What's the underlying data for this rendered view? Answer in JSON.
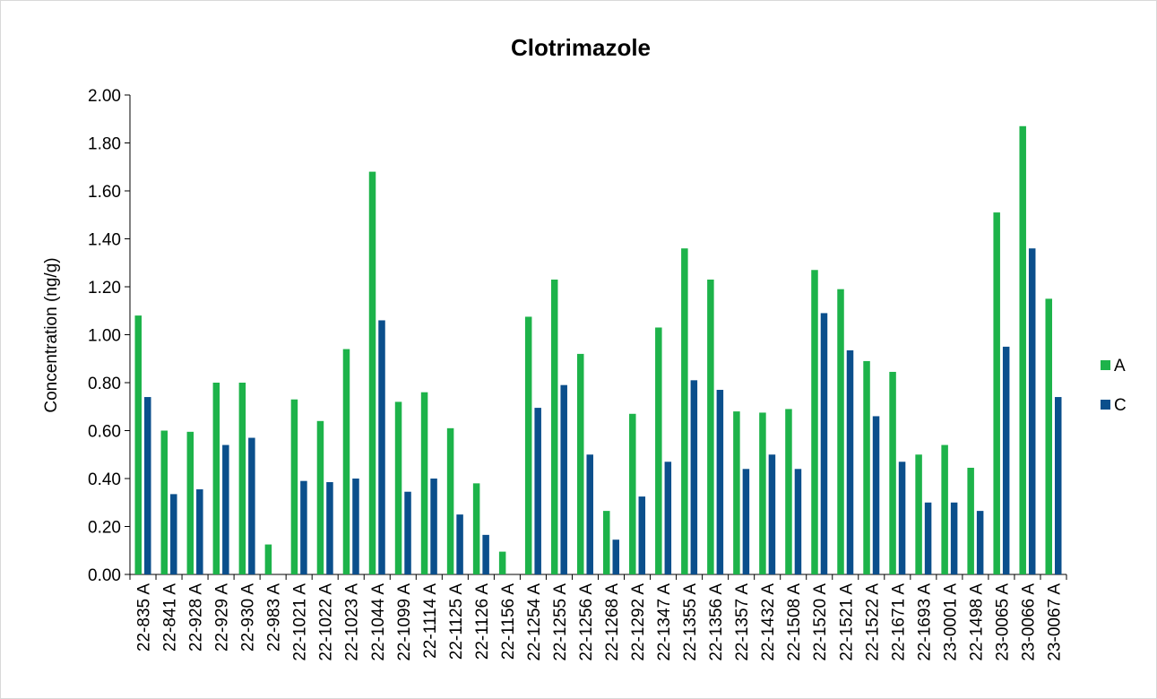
{
  "chart_data": {
    "type": "bar",
    "title": "Clotrimazole",
    "y_label": "Concentration (ng/g)",
    "categories": [
      "22-835 A",
      "22-841 A",
      "22-928 A",
      "22-929 A",
      "22-930 A",
      "22-983 A",
      "22-1021 A",
      "22-1022 A",
      "22-1023 A",
      "22-1044 A",
      "22-1099 A",
      "22-1114 A",
      "22-1125 A",
      "22-1126 A",
      "22-1156 A",
      "22-1254 A",
      "22-1255 A",
      "22-1256 A",
      "22-1268 A",
      "22-1292 A",
      "22-1347 A",
      "22-1355 A",
      "22-1356 A",
      "22-1357 A",
      "22-1432 A",
      "22-1508 A",
      "22-1520 A",
      "22-1521 A",
      "22-1522 A",
      "22-1671 A",
      "22-1693 A",
      "23-0001 A",
      "22-1498 A",
      "23-0065 A",
      "23-0066 A",
      "23-0067 A"
    ],
    "series": [
      {
        "name": "A",
        "color": "#1db34a",
        "values": [
          1.08,
          0.6,
          0.595,
          0.8,
          0.8,
          0.125,
          0.73,
          0.64,
          0.94,
          1.68,
          0.72,
          0.76,
          0.61,
          0.38,
          0.095,
          1.075,
          1.23,
          0.92,
          0.265,
          0.67,
          1.03,
          1.36,
          1.23,
          0.68,
          0.675,
          0.69,
          1.27,
          1.19,
          0.89,
          0.845,
          0.5,
          0.54,
          0.445,
          1.51,
          1.87,
          1.15
        ]
      },
      {
        "name": "C",
        "color": "#0b4f8c",
        "values": [
          0.74,
          0.335,
          0.355,
          0.54,
          0.57,
          null,
          0.39,
          0.385,
          0.4,
          1.06,
          0.345,
          0.4,
          0.25,
          0.165,
          null,
          0.695,
          0.79,
          0.5,
          0.145,
          0.325,
          0.47,
          0.81,
          0.77,
          0.44,
          0.5,
          0.44,
          1.09,
          0.935,
          0.66,
          0.47,
          0.3,
          0.3,
          0.265,
          0.95,
          1.36,
          0.74
        ]
      }
    ],
    "ylim": [
      0,
      2
    ],
    "yticks": [
      {
        "value": 0,
        "label": "0.00"
      },
      {
        "value": 0.2,
        "label": "0.20"
      },
      {
        "value": 0.4,
        "label": "0.40"
      },
      {
        "value": 0.6,
        "label": "0.60"
      },
      {
        "value": 0.8,
        "label": "0.80"
      },
      {
        "value": 1,
        "label": "1.00"
      },
      {
        "value": 1.2,
        "label": "1.20"
      },
      {
        "value": 1.4,
        "label": "1.40"
      },
      {
        "value": 1.6,
        "label": "1.60"
      },
      {
        "value": 1.8,
        "label": "1.80"
      },
      {
        "value": 2,
        "label": "2.00"
      }
    ],
    "legend": "right"
  }
}
